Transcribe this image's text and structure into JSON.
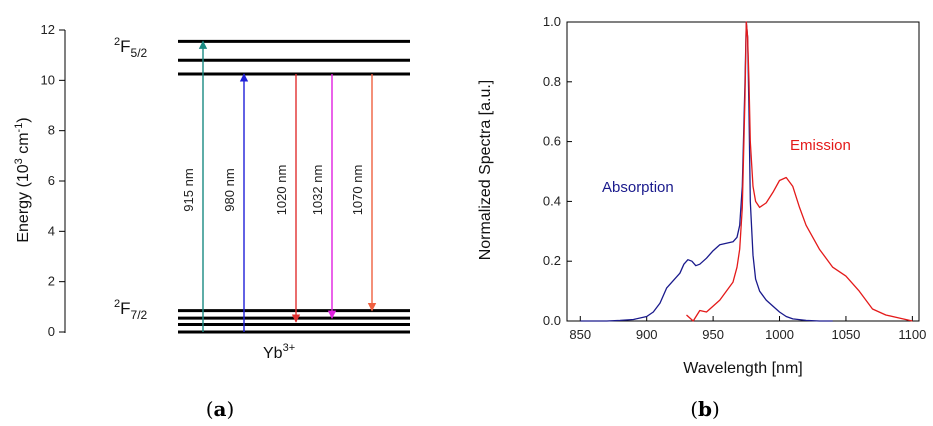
{
  "figure": {
    "panel_a_label": {
      "open": "(",
      "letter": "a",
      "close": ")"
    },
    "panel_b_label": {
      "open": "(",
      "letter": "b",
      "close": ")"
    }
  },
  "chart_data": [
    {
      "type": "energy-level-diagram",
      "ylabel": {
        "text": "Energy (10",
        "sup1": "3",
        "mid": " cm",
        "sup2": "-1",
        "end": ")"
      },
      "ylim": [
        0,
        12
      ],
      "yticks": [
        0,
        2,
        4,
        6,
        8,
        10,
        12
      ],
      "ytick_labels": [
        "0",
        "2",
        "4",
        "6",
        "8",
        "10",
        "12"
      ],
      "ion_label": {
        "base": "Yb",
        "sup": "3+"
      },
      "manifold_upper": {
        "sup": "2",
        "base": "F",
        "sub": "5/2"
      },
      "manifold_lower": {
        "sup": "2",
        "base": "F",
        "sub": "7/2"
      },
      "levels": [
        0.0,
        0.3,
        0.55,
        0.85,
        10.25,
        10.8,
        11.55
      ],
      "transitions": [
        {
          "label": "915 nm",
          "from": 0.0,
          "to": 11.55,
          "color": "#1a8a82",
          "direction": "up"
        },
        {
          "label": "980 nm",
          "from": 0.0,
          "to": 10.25,
          "color": "#1f1fd8",
          "direction": "up"
        },
        {
          "label": "1020 nm",
          "from": 10.25,
          "to": 0.4,
          "color": "#e03030",
          "direction": "down"
        },
        {
          "label": "1032 nm",
          "from": 10.25,
          "to": 0.55,
          "color": "#e020e0",
          "direction": "down"
        },
        {
          "label": "1070 nm",
          "from": 10.25,
          "to": 0.85,
          "color": "#f06040",
          "direction": "down"
        }
      ]
    },
    {
      "type": "line",
      "xlabel": "Wavelength [nm]",
      "ylabel": "Normalized Spectra [a.u.]",
      "xlim": [
        840,
        1105
      ],
      "ylim": [
        0,
        1.0
      ],
      "xticks": [
        850,
        900,
        950,
        1000,
        1050,
        1100
      ],
      "xtick_labels": [
        "850",
        "900",
        "950",
        "1000",
        "1050",
        "1100"
      ],
      "yticks": [
        0.0,
        0.2,
        0.4,
        0.6,
        0.8,
        1.0
      ],
      "ytick_labels": [
        "0.0",
        "0.2",
        "0.4",
        "0.6",
        "0.8",
        "1.0"
      ],
      "series": [
        {
          "name": "Absorption",
          "color": "#1a1a8c",
          "x": [
            850,
            860,
            870,
            880,
            890,
            900,
            905,
            910,
            915,
            920,
            925,
            928,
            931,
            934,
            937,
            940,
            945,
            950,
            955,
            960,
            965,
            968,
            970,
            972,
            974,
            975,
            976,
            977,
            978,
            980,
            982,
            985,
            990,
            995,
            1000,
            1005,
            1010,
            1020,
            1030,
            1040
          ],
          "y": [
            0.0,
            0.0,
            0.0,
            0.002,
            0.005,
            0.015,
            0.03,
            0.06,
            0.11,
            0.135,
            0.16,
            0.19,
            0.205,
            0.2,
            0.185,
            0.19,
            0.21,
            0.235,
            0.255,
            0.26,
            0.265,
            0.28,
            0.32,
            0.45,
            0.8,
            1.0,
            0.95,
            0.7,
            0.4,
            0.22,
            0.14,
            0.1,
            0.07,
            0.05,
            0.03,
            0.015,
            0.007,
            0.002,
            0.0,
            0.0
          ]
        },
        {
          "name": "Emission",
          "color": "#e41a1a",
          "x": [
            930,
            935,
            940,
            945,
            950,
            955,
            960,
            965,
            968,
            970,
            972,
            974,
            975,
            976,
            977,
            978,
            980,
            982,
            985,
            990,
            995,
            1000,
            1005,
            1010,
            1015,
            1020,
            1030,
            1040,
            1050,
            1060,
            1070,
            1080,
            1090,
            1100
          ],
          "y": [
            0.02,
            0.0,
            0.035,
            0.03,
            0.05,
            0.07,
            0.1,
            0.13,
            0.18,
            0.24,
            0.38,
            0.75,
            1.0,
            0.95,
            0.8,
            0.6,
            0.45,
            0.4,
            0.38,
            0.395,
            0.43,
            0.47,
            0.48,
            0.45,
            0.38,
            0.32,
            0.24,
            0.18,
            0.15,
            0.1,
            0.04,
            0.02,
            0.01,
            0.0
          ]
        }
      ]
    }
  ]
}
